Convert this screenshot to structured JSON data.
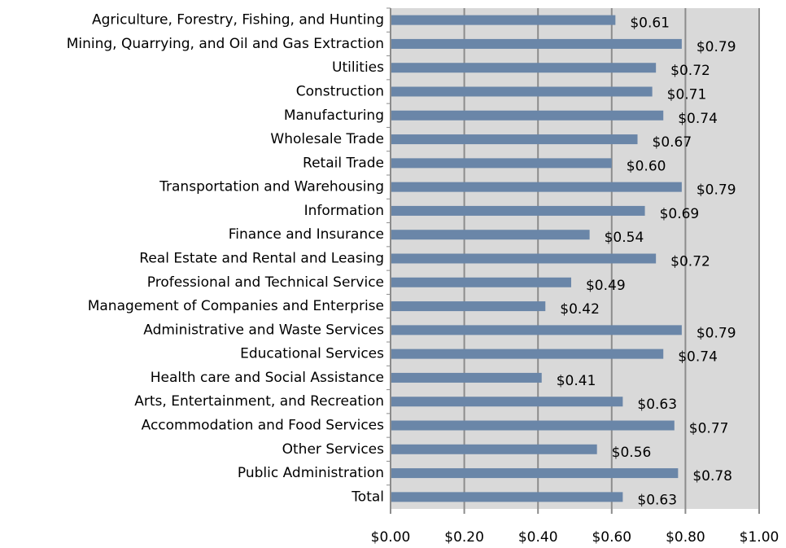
{
  "chart_data": {
    "type": "bar",
    "orientation": "horizontal",
    "categories": [
      "Agriculture, Forestry, Fishing, and Hunting",
      "Mining, Quarrying, and Oil and Gas Extraction",
      "Utilities",
      "Construction",
      "Manufacturing",
      "Wholesale Trade",
      "Retail Trade",
      "Transportation and Warehousing",
      "Information",
      "Finance and Insurance",
      "Real Estate and Rental and Leasing",
      "Professional and Technical Service",
      "Management of Companies and Enterprise",
      "Administrative and Waste Services",
      "Educational Services",
      "Health care and Social Assistance",
      "Arts, Entertainment, and Recreation",
      "Accommodation and Food Services",
      "Other Services",
      "Public Administration",
      "Total"
    ],
    "values": [
      0.61,
      0.79,
      0.72,
      0.71,
      0.74,
      0.67,
      0.6,
      0.79,
      0.69,
      0.54,
      0.72,
      0.49,
      0.42,
      0.79,
      0.74,
      0.41,
      0.63,
      0.77,
      0.56,
      0.78,
      0.63
    ],
    "value_labels": [
      "$0.61",
      "$0.79",
      "$0.72",
      "$0.71",
      "$0.74",
      "$0.67",
      "$0.60",
      "$0.79",
      "$0.69",
      "$0.54",
      "$0.72",
      "$0.49",
      "$0.42",
      "$0.79",
      "$0.74",
      "$0.41",
      "$0.63",
      "$0.77",
      "$0.56",
      "$0.78",
      "$0.63"
    ],
    "color": "#6a86a8",
    "xlim": [
      0,
      1
    ],
    "xticks": [
      {
        "value": 0,
        "label": "$0.00"
      },
      {
        "value": 0.2,
        "label": "$0.20"
      },
      {
        "value": 0.4,
        "label": "$0.40"
      },
      {
        "value": 0.6,
        "label": "$0.60"
      },
      {
        "value": 0.8,
        "label": "$0.80"
      },
      {
        "value": 1,
        "label": "$1.00"
      }
    ],
    "grid": true
  }
}
